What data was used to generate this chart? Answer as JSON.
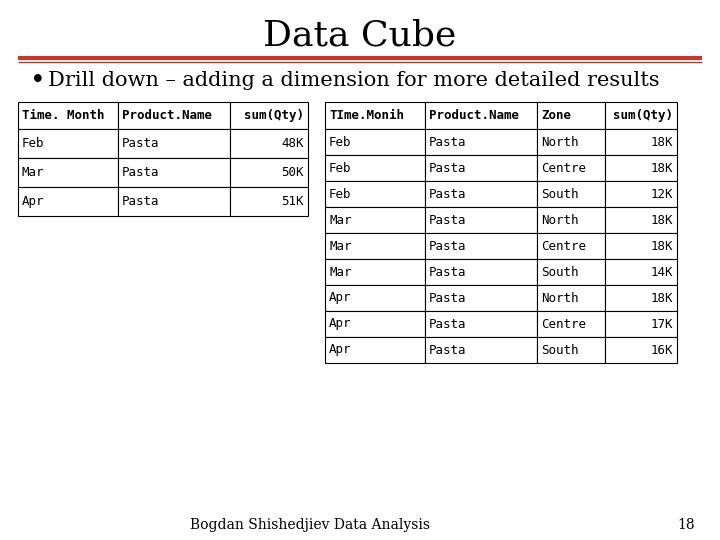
{
  "title": "Data Cube",
  "title_fontsize": 26,
  "title_font": "serif",
  "subtitle": "Drill down – adding a dimension for more detailed results",
  "subtitle_fontsize": 15,
  "subtitle_font": "serif",
  "bullet": "•",
  "hr_color": "#c0392b",
  "bg_color": "#ffffff",
  "footer_text": "Bogdan Shishedjiev Data Analysis",
  "footer_page": "18",
  "footer_fontsize": 10,
  "table1_headers": [
    "Time. Month",
    "Product.Name",
    "sum(Qty)"
  ],
  "table1_data": [
    [
      "Feb",
      "Pasta",
      "48K"
    ],
    [
      "Mar",
      "Pasta",
      "50K"
    ],
    [
      "Apr",
      "Pasta",
      "51K"
    ]
  ],
  "table2_headers": [
    "TIme.Monih",
    "Product.Name",
    "Zone",
    "sum(Qty)"
  ],
  "table2_data": [
    [
      "Feb",
      "Pasta",
      "North",
      "18K"
    ],
    [
      "Feb",
      "Pasta",
      "Centre",
      "18K"
    ],
    [
      "Feb",
      "Pasta",
      "South",
      "12K"
    ],
    [
      "Mar",
      "Pasta",
      "North",
      "18K"
    ],
    [
      "Mar",
      "Pasta",
      "Centre",
      "18K"
    ],
    [
      "Mar",
      "Pasta",
      "South",
      "14K"
    ],
    [
      "Apr",
      "Pasta",
      "North",
      "18K"
    ],
    [
      "Apr",
      "Pasta",
      "Centre",
      "17K"
    ],
    [
      "Apr",
      "Pasta",
      "South",
      "16K"
    ]
  ],
  "table_edge_color": "#000000",
  "table_font": "monospace",
  "table_fontsize": 9,
  "table_header_fontsize": 9
}
